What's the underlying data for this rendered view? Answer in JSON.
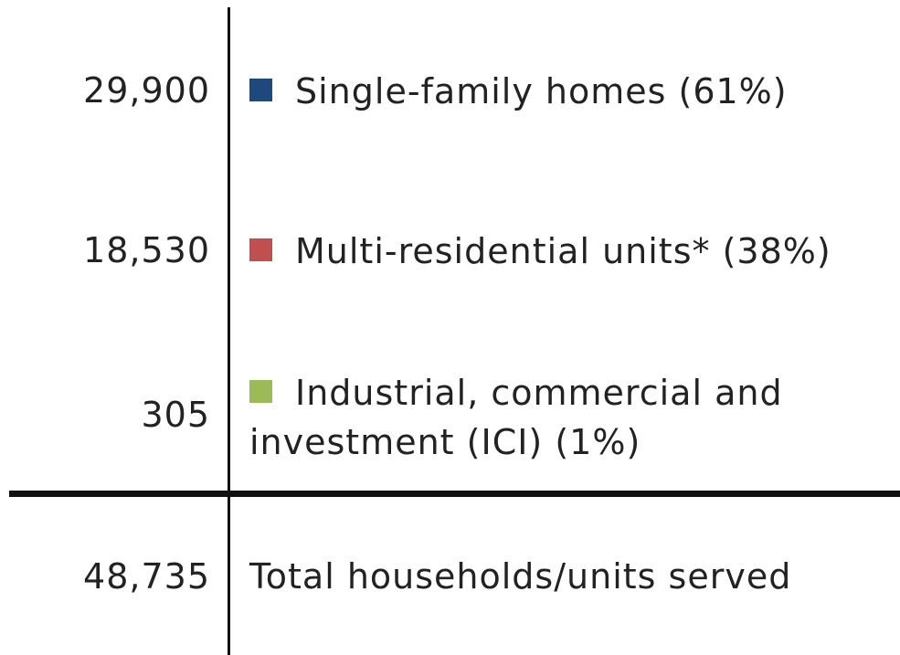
{
  "rows": [
    {
      "value": "29,900",
      "label": "Single-family homes (61%)",
      "color": "#1f497d"
    },
    {
      "value": "18,530",
      "label": "Multi-residential units* (38%)",
      "color": "#c0504d"
    },
    {
      "value": "305",
      "label": "Industrial, commercial and investment (ICI) (1%)",
      "color": "#9bbb59"
    }
  ],
  "total": {
    "value": "48,735",
    "label": "Total households/units served"
  }
}
